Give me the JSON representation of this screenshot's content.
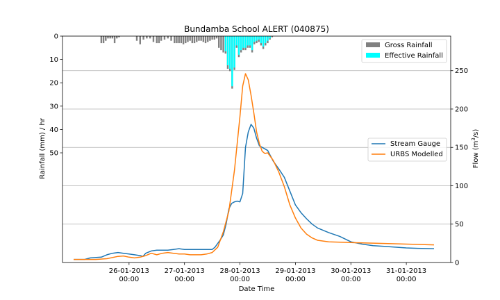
{
  "chart_data": {
    "type": "bar+line",
    "title": "Bundamba School ALERT (040875)",
    "xlabel": "Date Time",
    "ylabel_left": "Rainfall (mm) / hr",
    "ylabel_right_base": "Flow (m",
    "ylabel_right_sup": "3",
    "ylabel_right_tail": "/s)",
    "x_tick_labels": [
      {
        "x": 1.0,
        "l1": "26-01-2013",
        "l2": "00:00"
      },
      {
        "x": 2.0,
        "l1": "27-01-2013",
        "l2": "00:00"
      },
      {
        "x": 3.0,
        "l1": "28-01-2013",
        "l2": "00:00"
      },
      {
        "x": 4.0,
        "l1": "29-01-2013",
        "l2": "00:00"
      },
      {
        "x": 5.0,
        "l1": "30-01-2013",
        "l2": "00:00"
      },
      {
        "x": 6.0,
        "l1": "31-01-2013",
        "l2": "00:00"
      }
    ],
    "xlim": [
      -0.2,
      6.8
    ],
    "rain_ylim": [
      0,
      97
    ],
    "rain_ticks": [
      0,
      10,
      20,
      30,
      40,
      50
    ],
    "flow_ylim": [
      0,
      295
    ],
    "flow_ticks": [
      0,
      50,
      100,
      150,
      200,
      250
    ],
    "grid": "horizontal at flow ticks",
    "legend_rain": {
      "placement": "top-right",
      "entries": [
        {
          "name": "Gross Rainfall",
          "color": "#808080"
        },
        {
          "name": "Effective Rainfall",
          "color": "#00ffff"
        }
      ]
    },
    "legend_flow": {
      "placement": "center-right",
      "entries": [
        {
          "name": "Stream Gauge",
          "color": "#1f77b4"
        },
        {
          "name": "URBS Modelled",
          "color": "#ff7f0e"
        }
      ]
    },
    "rainfall": {
      "gross": [
        [
          0.5,
          3
        ],
        [
          0.54,
          3
        ],
        [
          0.58,
          2
        ],
        [
          0.62,
          1
        ],
        [
          0.66,
          1
        ],
        [
          0.7,
          1
        ],
        [
          0.74,
          3
        ],
        [
          0.78,
          1
        ],
        [
          0.82,
          0.5
        ],
        [
          1.14,
          2
        ],
        [
          1.2,
          3.5
        ],
        [
          1.26,
          1.5
        ],
        [
          1.32,
          1
        ],
        [
          1.38,
          1
        ],
        [
          1.44,
          2.5
        ],
        [
          1.5,
          3
        ],
        [
          1.54,
          3
        ],
        [
          1.58,
          2
        ],
        [
          1.64,
          1.5
        ],
        [
          1.7,
          1
        ],
        [
          1.76,
          2
        ],
        [
          1.82,
          3
        ],
        [
          1.86,
          3
        ],
        [
          1.9,
          3
        ],
        [
          1.94,
          3
        ],
        [
          1.98,
          3.5
        ],
        [
          2.02,
          3
        ],
        [
          2.06,
          2.5
        ],
        [
          2.1,
          2
        ],
        [
          2.14,
          3
        ],
        [
          2.18,
          3
        ],
        [
          2.22,
          2.5
        ],
        [
          2.26,
          2
        ],
        [
          2.3,
          2
        ],
        [
          2.34,
          2.5
        ],
        [
          2.38,
          3
        ],
        [
          2.42,
          2.5
        ],
        [
          2.46,
          2
        ],
        [
          2.5,
          1.5
        ],
        [
          2.54,
          1.5
        ],
        [
          2.58,
          1
        ],
        [
          2.62,
          5
        ],
        [
          2.66,
          6
        ],
        [
          2.7,
          7
        ],
        [
          2.74,
          7.5
        ],
        [
          2.78,
          14
        ],
        [
          2.82,
          15
        ],
        [
          2.86,
          22.5
        ],
        [
          2.9,
          14.5
        ],
        [
          2.94,
          5
        ],
        [
          2.98,
          9
        ],
        [
          3.02,
          7
        ],
        [
          3.06,
          6
        ],
        [
          3.1,
          6
        ],
        [
          3.14,
          5
        ],
        [
          3.18,
          5
        ],
        [
          3.22,
          7
        ],
        [
          3.26,
          3.5
        ],
        [
          3.3,
          3
        ],
        [
          3.34,
          2.5
        ],
        [
          3.38,
          4
        ],
        [
          3.42,
          5.5
        ],
        [
          3.46,
          4
        ],
        [
          3.5,
          3
        ],
        [
          3.54,
          1.5
        ],
        [
          3.58,
          0.5
        ]
      ],
      "effective": [
        [
          2.74,
          6.5
        ],
        [
          2.78,
          12.5
        ],
        [
          2.82,
          14
        ],
        [
          2.86,
          21.5
        ],
        [
          2.9,
          13.5
        ],
        [
          2.94,
          4
        ],
        [
          2.98,
          8
        ],
        [
          3.02,
          6
        ],
        [
          3.06,
          5
        ],
        [
          3.1,
          5
        ],
        [
          3.14,
          4
        ],
        [
          3.18,
          4
        ],
        [
          3.22,
          6
        ],
        [
          3.26,
          2.5
        ],
        [
          3.3,
          2
        ],
        [
          3.34,
          1.5
        ],
        [
          3.38,
          3
        ],
        [
          3.42,
          4.5
        ],
        [
          3.46,
          3
        ],
        [
          3.5,
          2
        ],
        [
          3.54,
          1
        ]
      ]
    },
    "flow": {
      "gauge": [
        [
          0,
          4
        ],
        [
          0.2,
          4
        ],
        [
          0.3,
          6
        ],
        [
          0.5,
          7
        ],
        [
          0.6,
          10
        ],
        [
          0.7,
          12
        ],
        [
          0.8,
          13
        ],
        [
          0.9,
          12
        ],
        [
          1.0,
          11
        ],
        [
          1.1,
          10
        ],
        [
          1.2,
          9
        ],
        [
          1.25,
          8
        ],
        [
          1.3,
          12
        ],
        [
          1.4,
          15
        ],
        [
          1.5,
          16
        ],
        [
          1.6,
          16
        ],
        [
          1.7,
          16
        ],
        [
          1.8,
          17
        ],
        [
          1.9,
          18
        ],
        [
          2.0,
          17
        ],
        [
          2.1,
          17
        ],
        [
          2.2,
          17
        ],
        [
          2.3,
          17
        ],
        [
          2.4,
          17
        ],
        [
          2.5,
          17
        ],
        [
          2.55,
          20
        ],
        [
          2.6,
          25
        ],
        [
          2.65,
          30
        ],
        [
          2.7,
          36
        ],
        [
          2.75,
          50
        ],
        [
          2.8,
          70
        ],
        [
          2.85,
          77
        ],
        [
          2.9,
          79
        ],
        [
          2.95,
          80
        ],
        [
          3.0,
          79
        ],
        [
          3.05,
          90
        ],
        [
          3.1,
          150
        ],
        [
          3.15,
          170
        ],
        [
          3.2,
          180
        ],
        [
          3.25,
          175
        ],
        [
          3.3,
          162
        ],
        [
          3.35,
          152
        ],
        [
          3.4,
          150
        ],
        [
          3.5,
          146
        ],
        [
          3.6,
          132
        ],
        [
          3.7,
          122
        ],
        [
          3.8,
          111
        ],
        [
          3.9,
          93
        ],
        [
          4.0,
          75
        ],
        [
          4.1,
          65
        ],
        [
          4.2,
          57
        ],
        [
          4.3,
          50
        ],
        [
          4.4,
          45
        ],
        [
          4.6,
          39
        ],
        [
          4.8,
          34
        ],
        [
          5.0,
          27
        ],
        [
          5.2,
          24
        ],
        [
          5.4,
          22
        ],
        [
          5.6,
          21
        ],
        [
          5.8,
          20
        ],
        [
          6.0,
          19
        ],
        [
          6.2,
          18.5
        ],
        [
          6.5,
          18
        ]
      ],
      "model": [
        [
          0,
          4
        ],
        [
          0.2,
          4
        ],
        [
          0.4,
          4
        ],
        [
          0.6,
          5
        ],
        [
          0.8,
          8
        ],
        [
          0.9,
          8.5
        ],
        [
          1.0,
          7
        ],
        [
          1.1,
          6
        ],
        [
          1.2,
          7
        ],
        [
          1.3,
          9
        ],
        [
          1.4,
          12
        ],
        [
          1.5,
          10
        ],
        [
          1.6,
          12
        ],
        [
          1.7,
          13
        ],
        [
          1.8,
          12
        ],
        [
          1.9,
          11
        ],
        [
          2.0,
          11
        ],
        [
          2.1,
          10
        ],
        [
          2.2,
          10
        ],
        [
          2.3,
          10
        ],
        [
          2.4,
          11
        ],
        [
          2.5,
          13
        ],
        [
          2.6,
          20
        ],
        [
          2.7,
          40
        ],
        [
          2.8,
          67
        ],
        [
          2.9,
          120
        ],
        [
          3.0,
          190
        ],
        [
          3.05,
          230
        ],
        [
          3.1,
          246
        ],
        [
          3.15,
          238
        ],
        [
          3.2,
          218
        ],
        [
          3.25,
          195
        ],
        [
          3.3,
          170
        ],
        [
          3.35,
          155
        ],
        [
          3.4,
          145
        ],
        [
          3.45,
          142
        ],
        [
          3.5,
          143
        ],
        [
          3.6,
          133
        ],
        [
          3.7,
          118
        ],
        [
          3.8,
          99
        ],
        [
          3.9,
          75
        ],
        [
          4.0,
          58
        ],
        [
          4.1,
          45
        ],
        [
          4.2,
          37
        ],
        [
          4.3,
          32
        ],
        [
          4.4,
          29
        ],
        [
          4.6,
          27
        ],
        [
          5.0,
          26
        ],
        [
          5.5,
          25
        ],
        [
          6.0,
          24
        ],
        [
          6.5,
          23
        ]
      ]
    }
  }
}
